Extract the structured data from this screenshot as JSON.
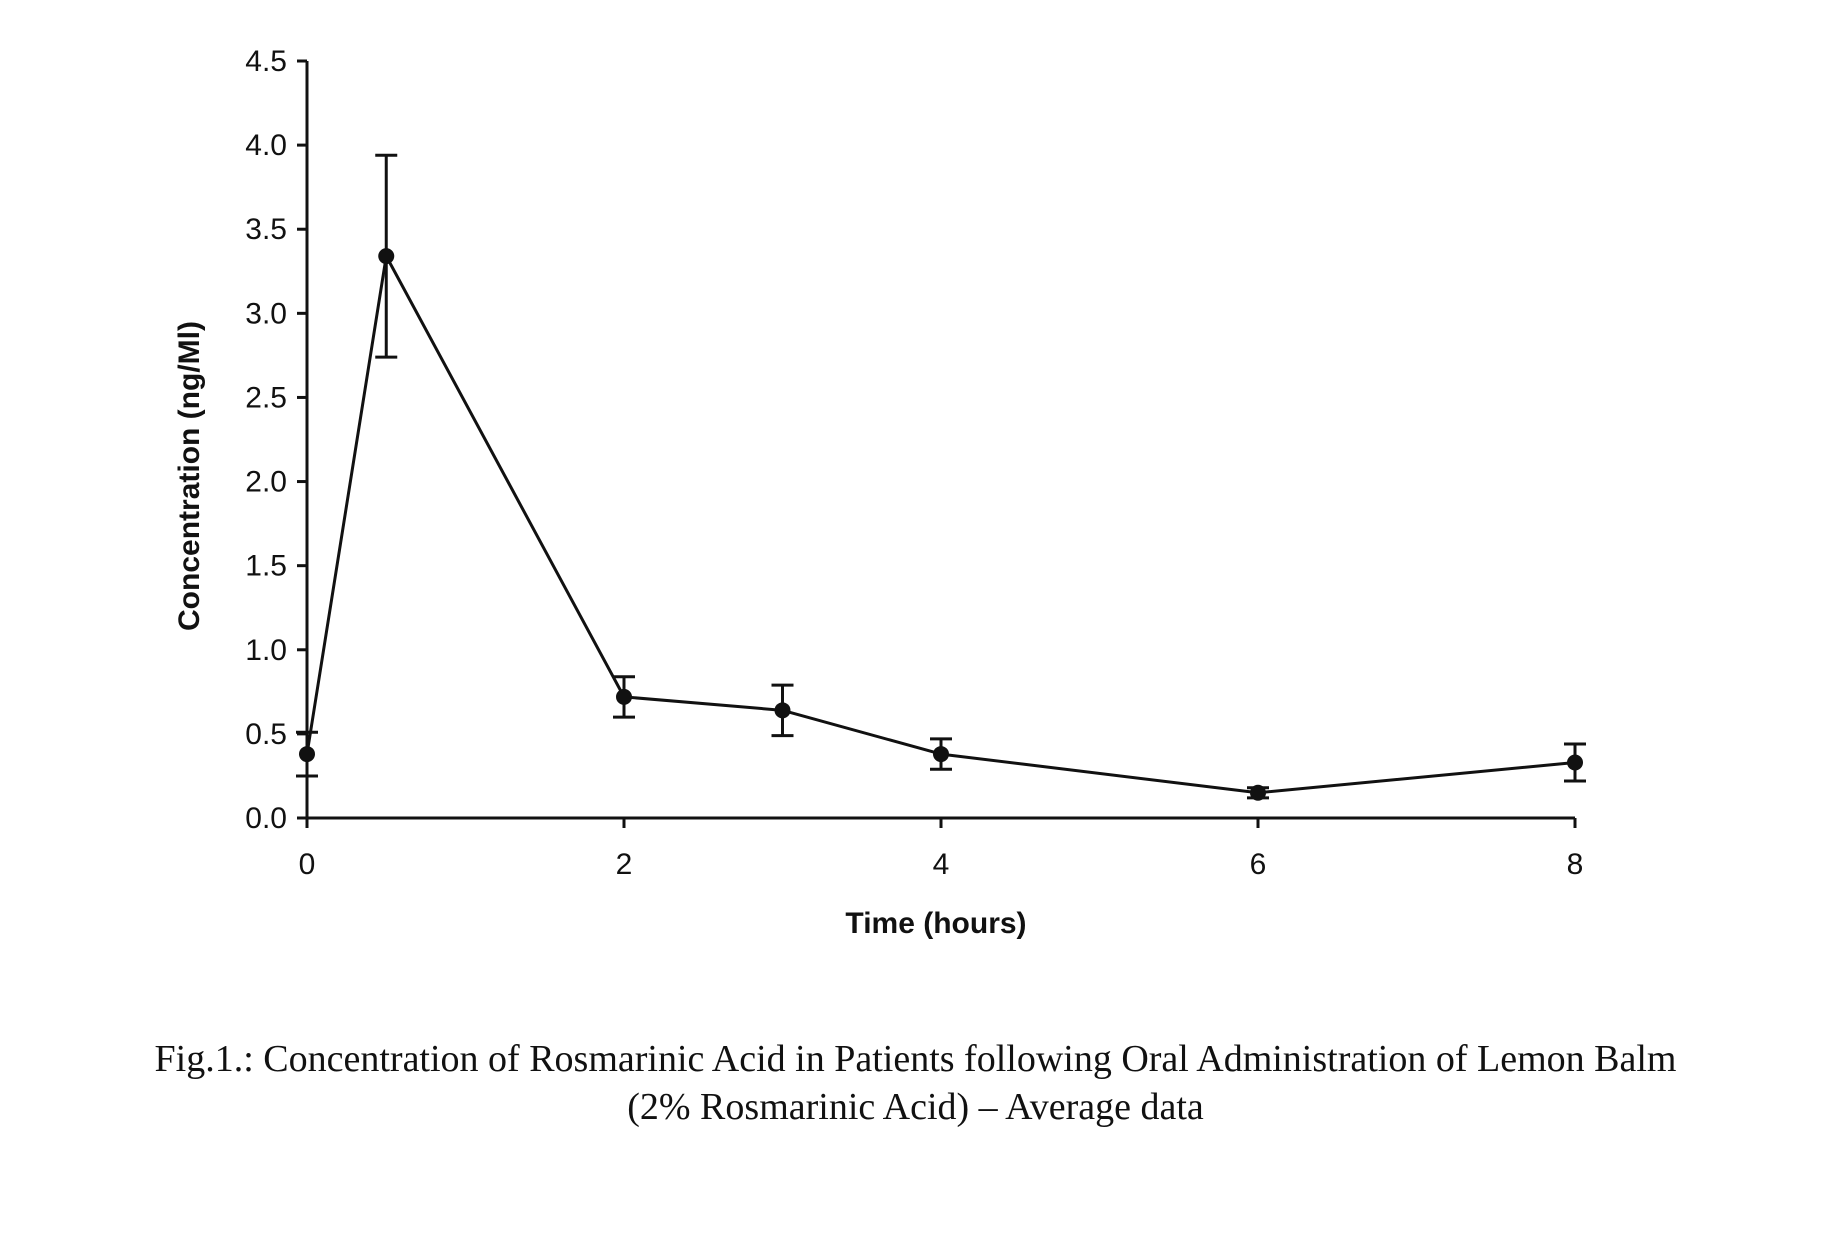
{
  "chart_data": {
    "type": "line",
    "xlabel": "Time (hours)",
    "ylabel": "Concentration (ng/Ml)",
    "xlim": [
      0,
      8
    ],
    "ylim": [
      0,
      4.5
    ],
    "xticks": [
      "0",
      "2",
      "4",
      "6",
      "8"
    ],
    "yticks": [
      "0.0",
      "0.5",
      "1.0",
      "1.5",
      "2.0",
      "2.5",
      "3.0",
      "3.5",
      "4.0",
      "4.5"
    ],
    "grid": false,
    "legend": "none",
    "series": [
      {
        "x": [
          0,
          0.5,
          2,
          3,
          4,
          6,
          8
        ],
        "y": [
          0.38,
          3.34,
          0.72,
          0.64,
          0.38,
          0.15,
          0.33
        ],
        "error": [
          0.13,
          0.6,
          0.12,
          0.15,
          0.09,
          0.03,
          0.11
        ]
      }
    ]
  },
  "caption": {
    "line1": "Fig.1.: Concentration of Rosmarinic Acid in Patients following Oral Administration of Lemon Balm",
    "line2": "(2% Rosmarinic Acid) – Average data"
  }
}
